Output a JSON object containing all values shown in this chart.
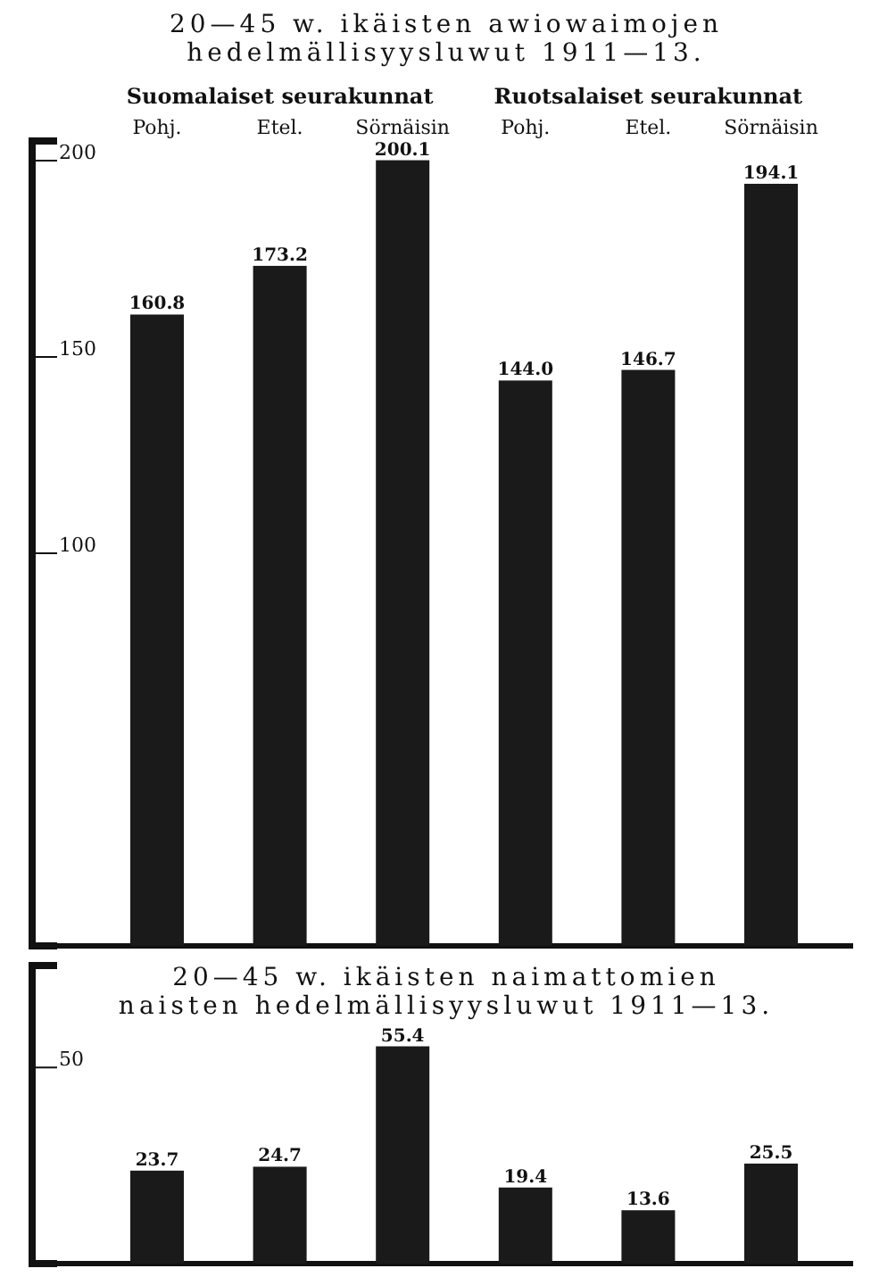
{
  "chart_data": [
    {
      "type": "bar",
      "title": "20—45 w. ikäisten awiowaimojen hedelmällisyysluwut 1911—13.",
      "annotations": [
        "Suomalaiset seurakunnat",
        "Ruotsalaiset seurakunnat"
      ],
      "categories": [
        "Pohj.",
        "Etel.",
        "Sörnäisin",
        "Pohj.",
        "Etel.",
        "Sörnäisin"
      ],
      "values": [
        160.8,
        173.2,
        200.1,
        144.0,
        146.7,
        194.1
      ],
      "value_labels": [
        "160.8",
        "173.2",
        "200.1",
        "144.0",
        "146.7",
        "194.1"
      ],
      "color": "#1a1a1a",
      "ylim": [
        0,
        205
      ],
      "yticks": [
        100,
        150,
        200
      ],
      "grid": false
    },
    {
      "type": "bar",
      "title": "20—45 w. ikäisten naimattomien naisten hedelmällisyysluwut 1911—13.",
      "categories": [
        null,
        null,
        null,
        null,
        null,
        null
      ],
      "values": [
        23.7,
        24.7,
        55.4,
        19.4,
        13.6,
        25.5
      ],
      "color": "#1a1a1a",
      "ylim": [
        0,
        76
      ],
      "yticks": [
        50
      ],
      "tick_labels": "y",
      "data_labels": true,
      "grid": false
    }
  ]
}
